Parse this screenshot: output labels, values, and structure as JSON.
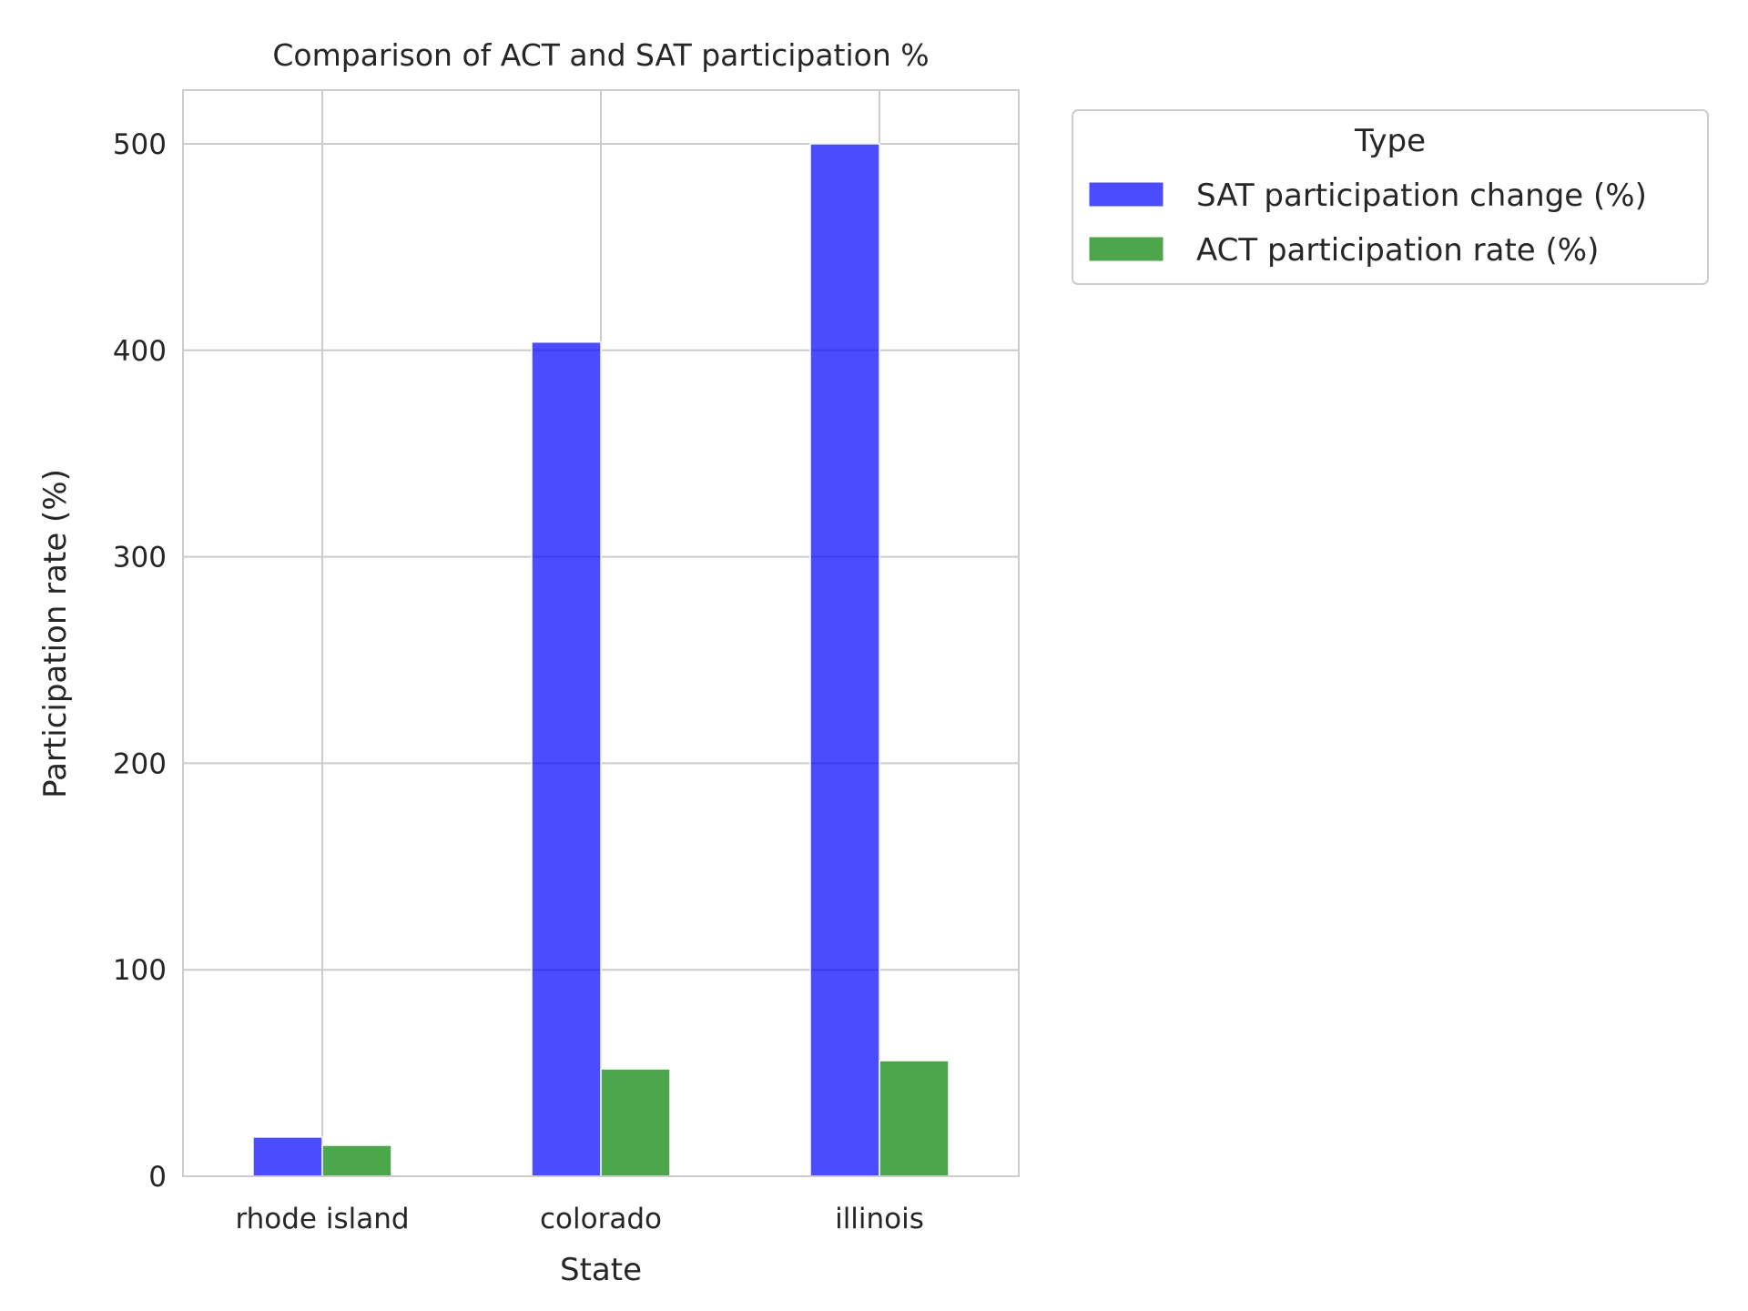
{
  "chart_data": {
    "type": "bar",
    "title": "Comparison of ACT and SAT participation %",
    "xlabel": "State",
    "ylabel": "Participation rate (%)",
    "categories": [
      "rhode island",
      "colorado",
      "illinois"
    ],
    "series": [
      {
        "name": "SAT participation change (%)",
        "values": [
          19,
          404,
          500
        ],
        "color": "#0000ff"
      },
      {
        "name": "ACT participation rate (%)",
        "values": [
          15,
          52,
          56
        ],
        "color": "#008000"
      }
    ],
    "ylim": [
      0,
      526
    ],
    "yticks": [
      0,
      100,
      200,
      300,
      400,
      500
    ],
    "grid": true,
    "legend": {
      "title": "Type",
      "placement": "top-right, outside plot"
    }
  }
}
